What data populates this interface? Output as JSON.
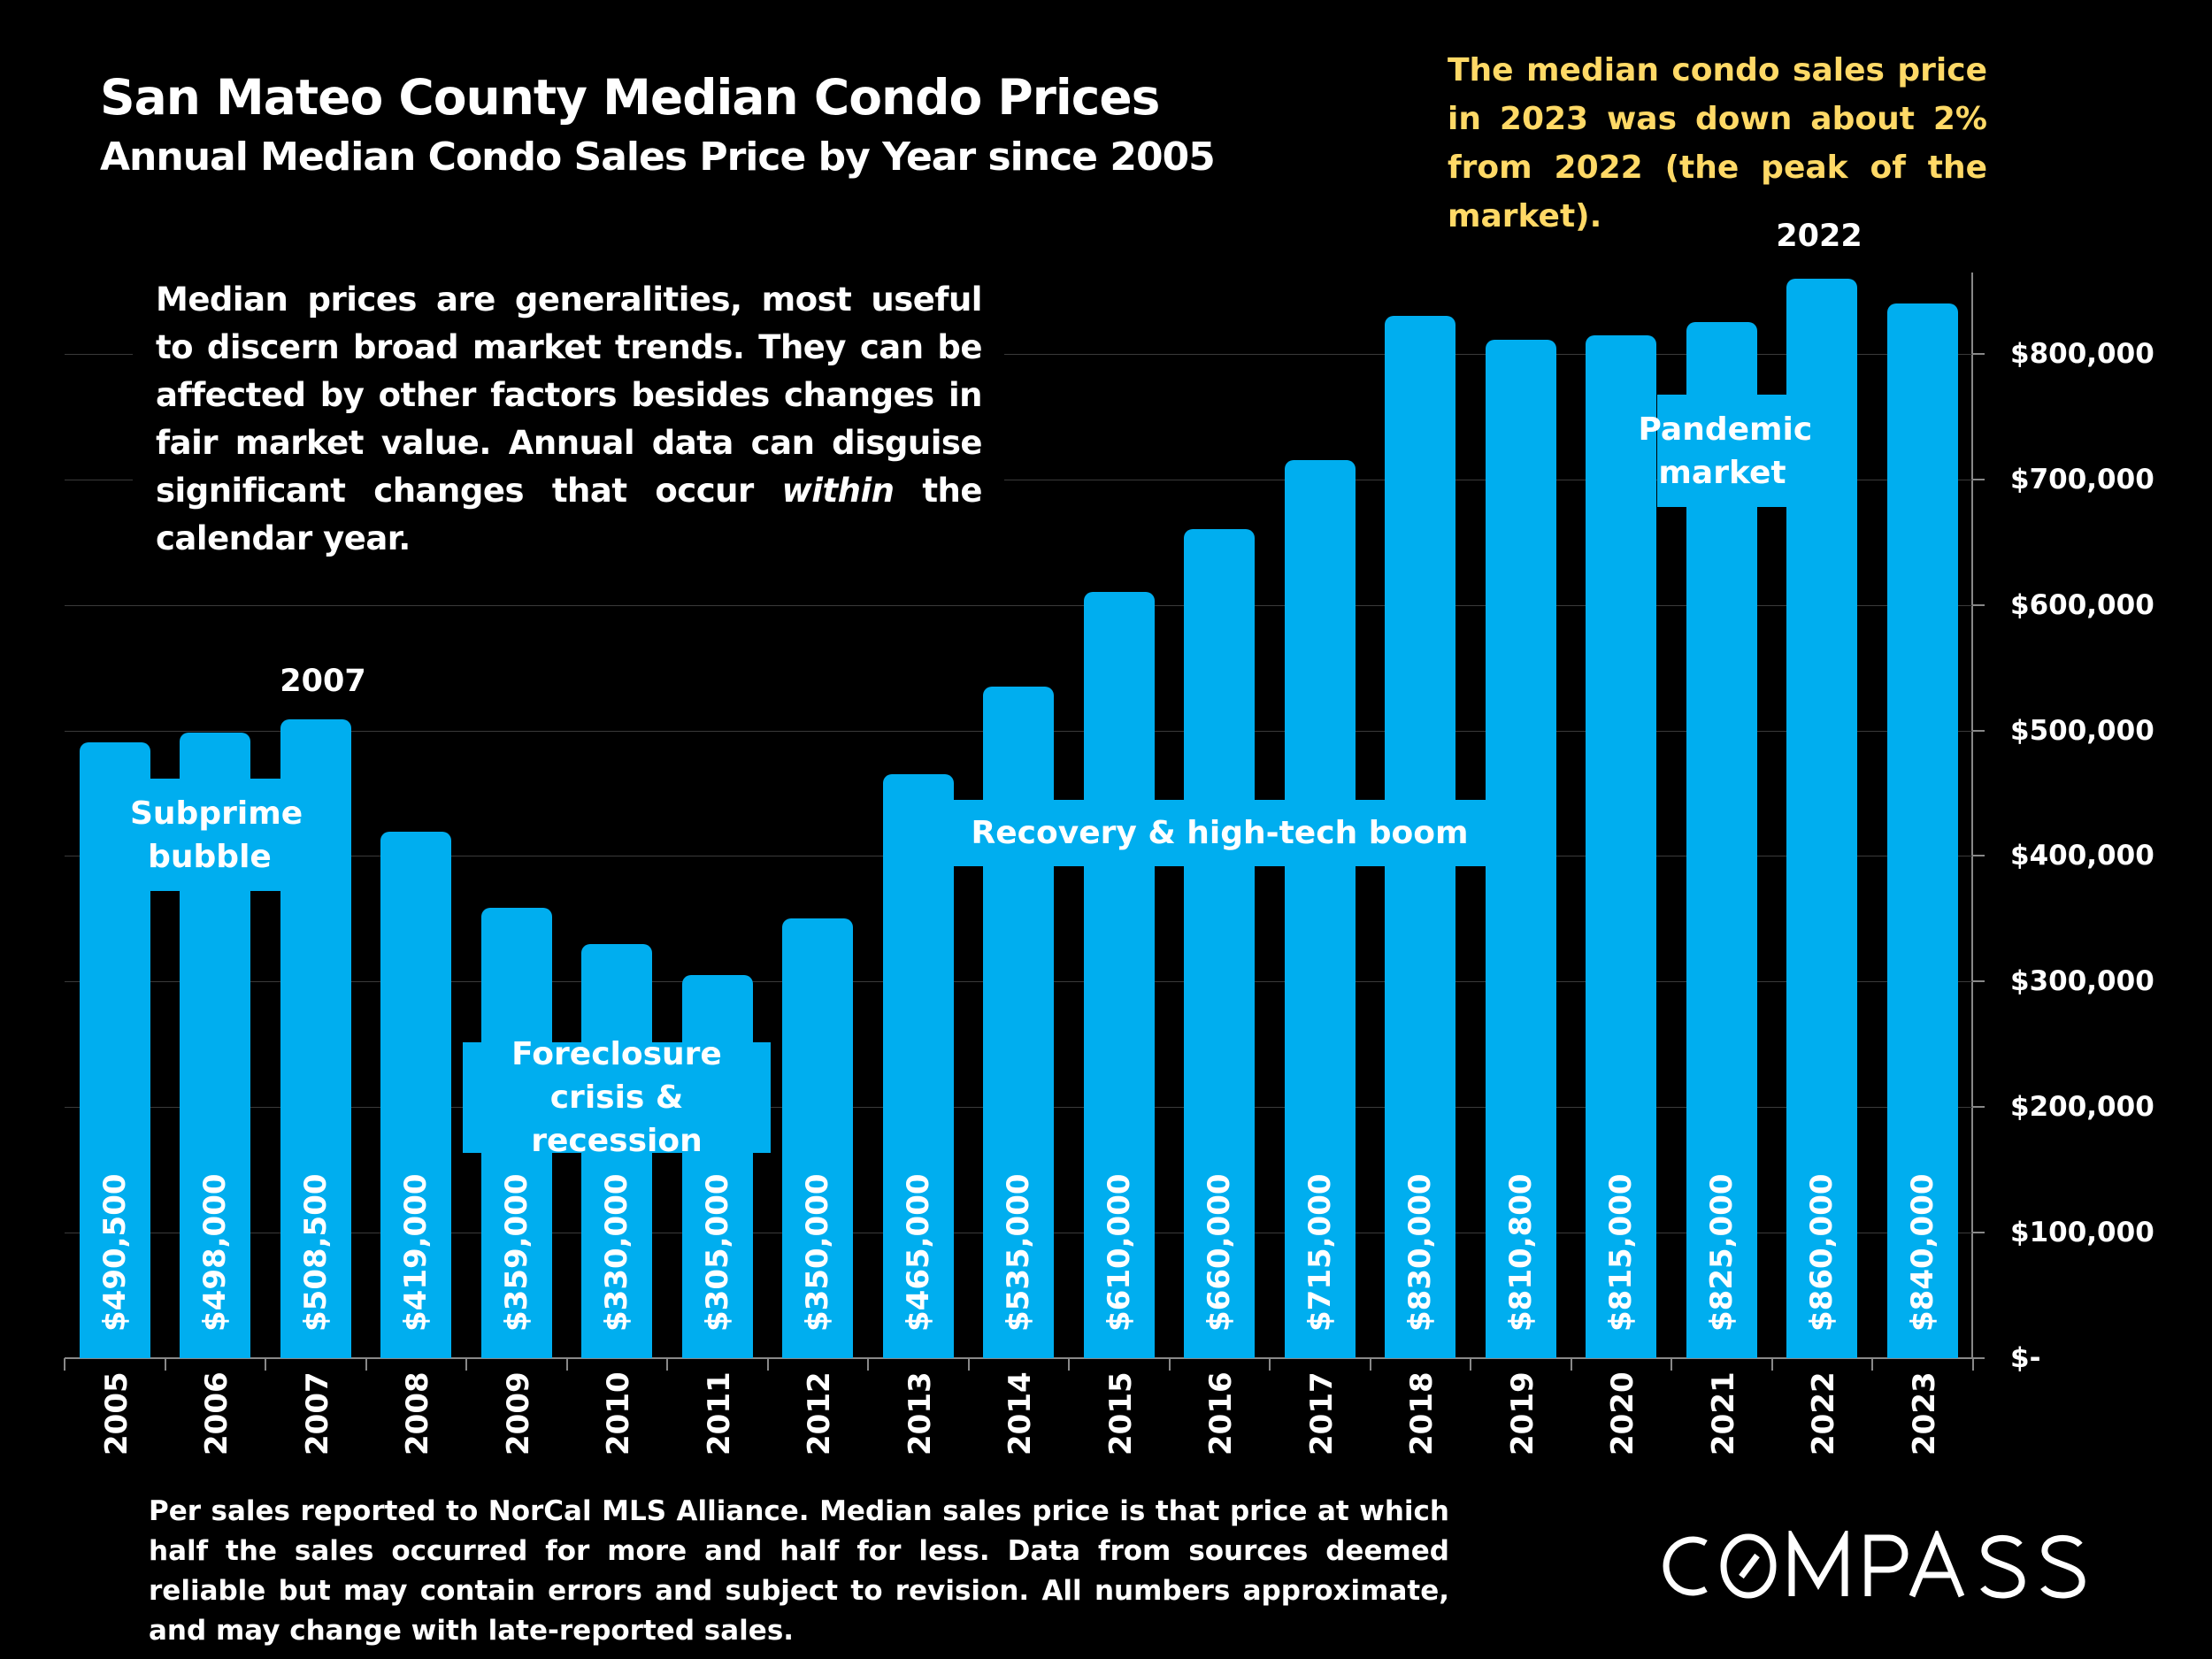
{
  "header": {
    "title": "San Mateo County Median Condo Prices",
    "subtitle": "Annual Median Condo Sales Price by Year since 2005"
  },
  "callout": "The median condo sales price in 2023 was down about 2% from 2022 (the peak of the market).",
  "note": {
    "before": "Median prices are generalities, most useful to discern broad market trends. They can be affected by other factors besides changes in fair market value. Annual data can disguise significant changes that occur ",
    "emphasis": "within",
    "after": " the calendar year."
  },
  "annotations": {
    "subprime": "Subprime bubble",
    "foreclosure": "Foreclosure crisis & recession",
    "recovery": "Recovery & high-tech boom",
    "pandemic": "Pandemic market",
    "peak_2007": "2007",
    "peak_2022": "2022"
  },
  "footer": "Per sales reported to NorCal MLS Alliance. Median sales price is that price at which half the sales occurred for more and half for less. Data from sources deemed reliable but may contain errors and subject to revision. All numbers approximate, and may change with late-reported sales.",
  "logo": "COMPASS",
  "colors": {
    "bar": "#00AEEF",
    "callout": "#FFD966",
    "background": "#000000",
    "text": "#FFFFFF"
  },
  "chart_data": {
    "type": "bar",
    "title": "San Mateo County Median Condo Prices",
    "subtitle": "Annual Median Condo Sales Price by Year since 2005",
    "categories": [
      "2005",
      "2006",
      "2007",
      "2008",
      "2009",
      "2010",
      "2011",
      "2012",
      "2013",
      "2014",
      "2015",
      "2016",
      "2017",
      "2018",
      "2019",
      "2020",
      "2021",
      "2022",
      "2023"
    ],
    "values": [
      490500,
      498000,
      508500,
      419000,
      359000,
      330000,
      305000,
      350000,
      465000,
      535000,
      610000,
      660000,
      715000,
      830000,
      810800,
      815000,
      825000,
      860000,
      840000
    ],
    "data_labels": [
      "$490,500",
      "$498,000",
      "$508,500",
      "$419,000",
      "$359,000",
      "$330,000",
      "$305,000",
      "$350,000",
      "$465,000",
      "$535,000",
      "$610,000",
      "$660,000",
      "$715,000",
      "$830,000",
      "$810,800",
      "$815,000",
      "$825,000",
      "$860,000",
      "$840,000"
    ],
    "y_ticks": [
      0,
      100000,
      200000,
      300000,
      400000,
      500000,
      600000,
      700000,
      800000
    ],
    "y_tick_labels": [
      "$-",
      "$100,000",
      "$200,000",
      "$300,000",
      "$400,000",
      "$500,000",
      "$600,000",
      "$700,000",
      "$800,000"
    ],
    "y_axis_position": "right",
    "ylim": [
      0,
      900000
    ],
    "grid": true,
    "xlabel": "",
    "ylabel": ""
  }
}
